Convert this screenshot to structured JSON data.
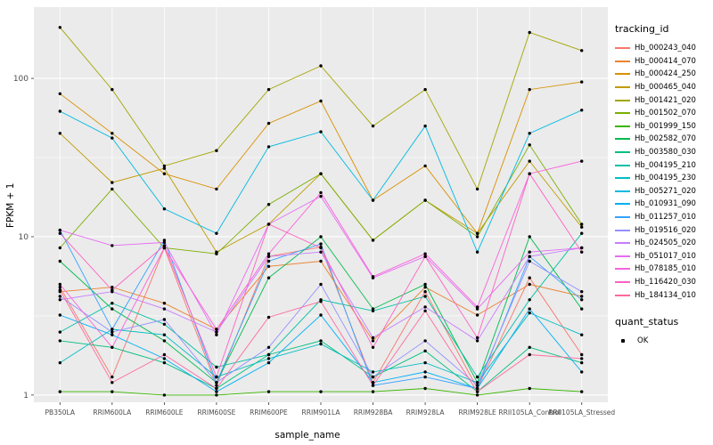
{
  "figure": {
    "background": "#FFFFFF",
    "panel_background": "#EBEBEB",
    "grid_color": "#FFFFFF",
    "axis_text_color": "#4D4D4D",
    "tick_mark_color": "#333333",
    "point_color": "#000000"
  },
  "chart_data": {
    "type": "line",
    "title": "",
    "xlabel": "sample_name",
    "ylabel": "FPKM + 1",
    "y_scale": "log10",
    "y_ticks": [
      1,
      10,
      100
    ],
    "ylim": [
      0.9,
      282
    ],
    "grid": true,
    "legend_position": "right",
    "legend_title": "tracking_id",
    "legend2_title": "quant_status",
    "legend2_items": [
      {
        "label": "OK",
        "marker": "point",
        "color": "#000000"
      }
    ],
    "categories": [
      "PB350LA",
      "RRIM600LA",
      "RRIM600LE",
      "RRIM600SE",
      "RRIM600PE",
      "RRIM901LA",
      "RRIM928BA",
      "RRIM928LA",
      "RRIM928LE",
      "RRII105LA_Control",
      "RRII105LA_Stressed"
    ],
    "series": [
      {
        "name": "Hb_000243_040",
        "color": "#F8766D",
        "values": [
          4.8,
          1.3,
          8.5,
          1.15,
          7.5,
          8.6,
          1.2,
          4.5,
          1.1,
          5.5,
          1.8
        ]
      },
      {
        "name": "Hb_000414_070",
        "color": "#EA8331",
        "values": [
          4.5,
          4.8,
          3.8,
          2.6,
          6.5,
          7.0,
          2.2,
          4.8,
          3.2,
          5.0,
          4.2
        ]
      },
      {
        "name": "Hb_000424_250",
        "color": "#D89000",
        "values": [
          80,
          45,
          25,
          20,
          52,
          72,
          17,
          28,
          10.5,
          85,
          95
        ]
      },
      {
        "name": "Hb_000465_040",
        "color": "#C09B00",
        "values": [
          45,
          22,
          27,
          8.0,
          12,
          25,
          9.5,
          17,
          10.5,
          30,
          11.5
        ]
      },
      {
        "name": "Hb_001421_020",
        "color": "#A3A500",
        "values": [
          210,
          85,
          28,
          35,
          85,
          120,
          50,
          85,
          20,
          195,
          150
        ]
      },
      {
        "name": "Hb_001502_070",
        "color": "#7CAE00",
        "values": [
          8.5,
          20,
          8.5,
          7.8,
          16,
          25,
          9.5,
          17,
          10.0,
          38,
          12
        ]
      },
      {
        "name": "Hb_001999_150",
        "color": "#39B600",
        "values": [
          1.05,
          1.05,
          1.0,
          1.0,
          1.05,
          1.05,
          1.05,
          1.1,
          1.0,
          1.1,
          1.05
        ]
      },
      {
        "name": "Hb_002582_070",
        "color": "#00BB4E",
        "values": [
          7.0,
          3.5,
          2.2,
          1.2,
          5.5,
          10,
          3.5,
          5.0,
          1.2,
          10,
          3.5
        ]
      },
      {
        "name": "Hb_003580_030",
        "color": "#00BF7D",
        "values": [
          2.2,
          2.0,
          1.6,
          1.1,
          1.8,
          2.2,
          1.3,
          1.9,
          1.05,
          2.0,
          1.6
        ]
      },
      {
        "name": "Hb_004195_210",
        "color": "#00C1A3",
        "values": [
          2.5,
          3.8,
          2.8,
          1.5,
          1.8,
          4.0,
          3.4,
          4.2,
          1.3,
          4.0,
          10.5
        ]
      },
      {
        "name": "Hb_004195_230",
        "color": "#00BFC4",
        "values": [
          1.6,
          2.6,
          2.4,
          1.3,
          1.7,
          2.1,
          1.4,
          1.6,
          1.2,
          3.3,
          2.4
        ]
      },
      {
        "name": "Hb_005271_020",
        "color": "#00BAE0",
        "values": [
          62,
          42,
          15,
          10.5,
          37,
          46,
          17,
          50,
          8.0,
          45,
          63
        ]
      },
      {
        "name": "Hb_010931_090",
        "color": "#00B0F6",
        "values": [
          3.2,
          2.4,
          1.7,
          1.05,
          1.6,
          3.2,
          1.2,
          1.4,
          1.1,
          3.5,
          1.4
        ]
      },
      {
        "name": "Hb_011257_010",
        "color": "#35A2FF",
        "values": [
          11,
          2.6,
          9.5,
          1.2,
          7.0,
          9.0,
          1.15,
          1.3,
          1.1,
          7.5,
          4.0
        ]
      },
      {
        "name": "Hb_019516_020",
        "color": "#9590FF",
        "values": [
          4.2,
          2.5,
          3.0,
          1.2,
          2.0,
          5.0,
          1.3,
          2.2,
          1.15,
          7.0,
          4.5
        ]
      },
      {
        "name": "Hb_024505_020",
        "color": "#C77CFF",
        "values": [
          4.0,
          4.5,
          3.5,
          2.5,
          7.5,
          8.0,
          2.3,
          3.6,
          2.2,
          7.5,
          8.5
        ]
      },
      {
        "name": "Hb_051017_010",
        "color": "#E76BF3",
        "values": [
          11,
          8.8,
          9.2,
          2.4,
          12,
          18,
          5.5,
          7.5,
          3.5,
          8.0,
          8.5
        ]
      },
      {
        "name": "Hb_078185_010",
        "color": "#FA62DB",
        "values": [
          5.0,
          2.0,
          8.5,
          2.6,
          7.8,
          19,
          5.6,
          7.8,
          3.6,
          25,
          30
        ]
      },
      {
        "name": "Hb_116420_030",
        "color": "#FF61C3",
        "values": [
          10.5,
          4.6,
          8.8,
          1.3,
          12,
          8.5,
          2.0,
          7.5,
          2.3,
          25,
          8.0
        ]
      },
      {
        "name": "Hb_184134_010",
        "color": "#FF689F",
        "values": [
          4.6,
          1.2,
          1.8,
          1.1,
          3.1,
          3.9,
          1.15,
          3.4,
          1.05,
          1.8,
          1.7
        ]
      }
    ]
  }
}
